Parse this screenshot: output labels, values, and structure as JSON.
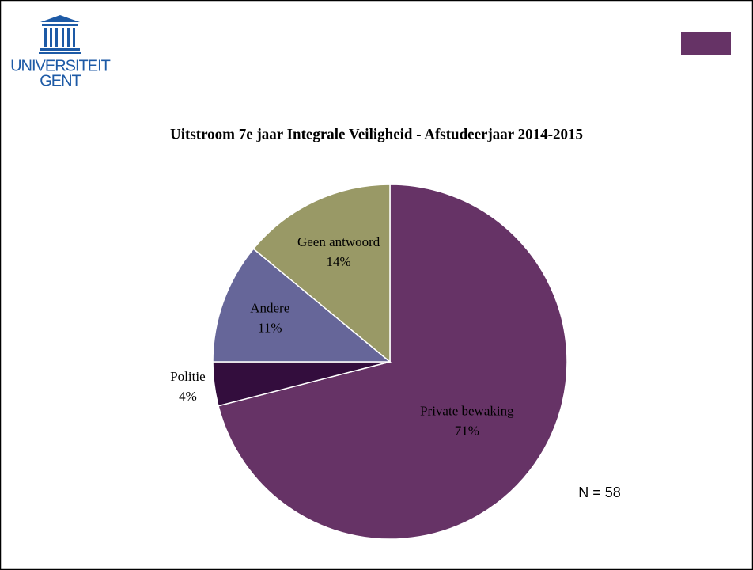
{
  "logo": {
    "line1": "UNIVERSITEIT",
    "line2": "GENT"
  },
  "chart_data": {
    "type": "pie",
    "title": "Uitstroom 7e jaar Integrale Veiligheid - Afstudeerjaar 2014-2015",
    "categories": [
      "Private bewaking",
      "Politie",
      "Andere",
      "Geen antwoord"
    ],
    "values": [
      71,
      4,
      11,
      14
    ],
    "value_labels": [
      "71%",
      "4%",
      "11%",
      "14%"
    ],
    "colors": [
      "#663366",
      "#330d3d",
      "#666699",
      "#999966"
    ],
    "annotation": "N = 58"
  }
}
